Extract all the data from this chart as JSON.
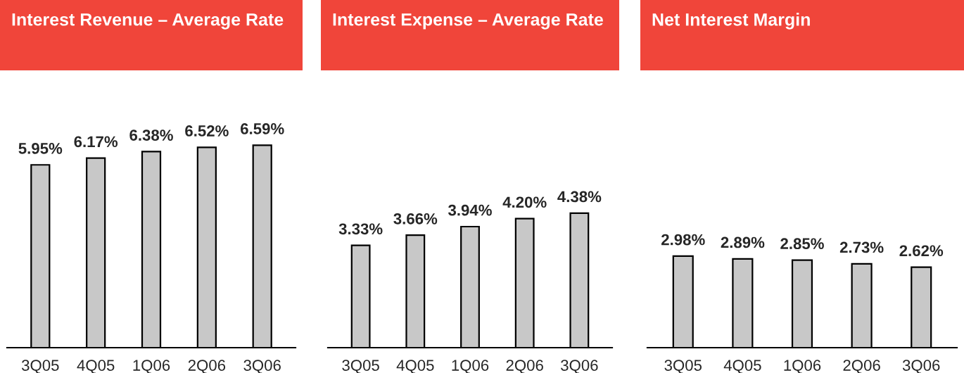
{
  "chart_data": [
    {
      "type": "bar",
      "title": "Interest Revenue – Average Rate",
      "categories": [
        "3Q05",
        "4Q05",
        "1Q06",
        "2Q06",
        "3Q06"
      ],
      "values": [
        5.95,
        6.17,
        6.38,
        6.52,
        6.59
      ],
      "value_labels": [
        "5.95%",
        "6.17%",
        "6.38%",
        "6.52%",
        "6.59%"
      ],
      "color": "#c8c8c8"
    },
    {
      "type": "bar",
      "title": "Interest Expense – Average Rate",
      "categories": [
        "3Q05",
        "4Q05",
        "1Q06",
        "2Q06",
        "3Q06"
      ],
      "values": [
        3.33,
        3.66,
        3.94,
        4.2,
        4.38
      ],
      "value_labels": [
        "3.33%",
        "3.66%",
        "3.94%",
        "4.20%",
        "4.38%"
      ],
      "color": "#c8c8c8"
    },
    {
      "type": "bar",
      "title": "Net Interest Margin",
      "categories": [
        "3Q05",
        "4Q05",
        "1Q06",
        "2Q06",
        "3Q06"
      ],
      "values": [
        2.98,
        2.89,
        2.85,
        2.73,
        2.62
      ],
      "value_labels": [
        "2.98%",
        "2.89%",
        "2.85%",
        "2.73%",
        "2.62%"
      ],
      "color": "#c8c8c8"
    }
  ]
}
